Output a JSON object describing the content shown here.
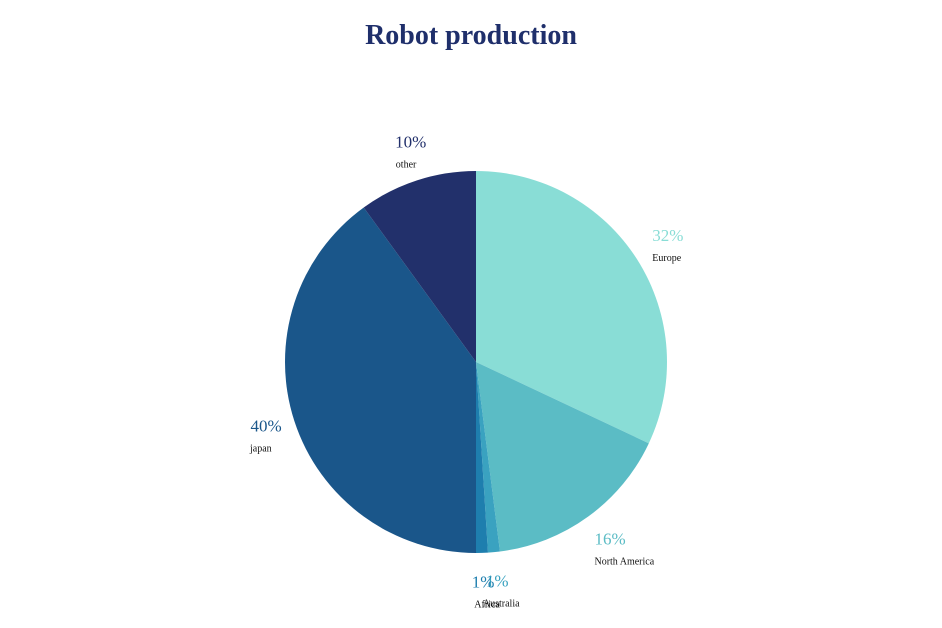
{
  "chart_data": {
    "type": "pie",
    "title": "Robot production",
    "slices": [
      {
        "label": "Europe",
        "value": 32,
        "display": "32%",
        "color": "#89ddd6"
      },
      {
        "label": "North America",
        "value": 16,
        "display": "16%",
        "color": "#5bbcc5"
      },
      {
        "label": "Australia",
        "value": 1,
        "display": "1%",
        "color": "#3aa2c0"
      },
      {
        "label": "Africa",
        "value": 1,
        "display": "1%",
        "color": "#1e7eae"
      },
      {
        "label": "japan",
        "value": 40,
        "display": "40%",
        "color": "#1a568a"
      },
      {
        "label": "other",
        "value": 10,
        "display": "10%",
        "color": "#22306b"
      }
    ],
    "start": "top",
    "direction": "clockwise",
    "legend": "none"
  }
}
